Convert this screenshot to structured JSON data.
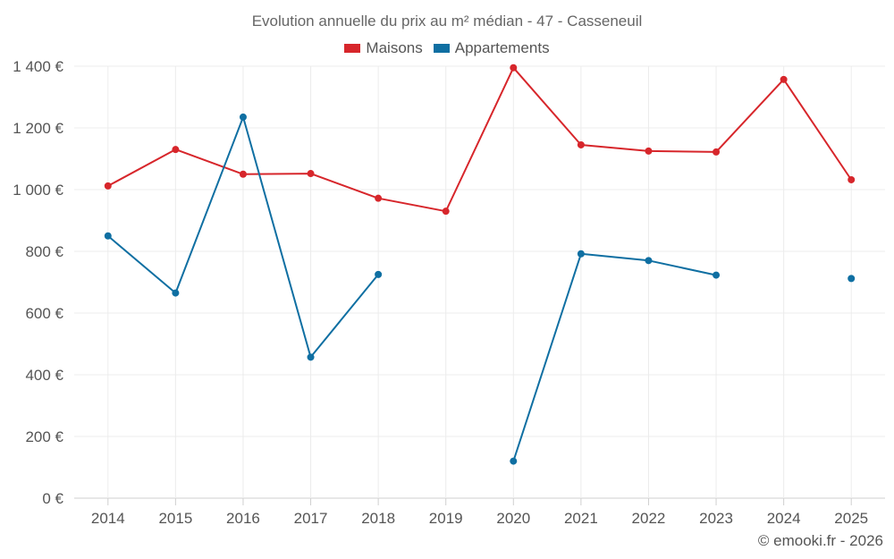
{
  "chart_data": {
    "type": "line",
    "title": "Evolution annuelle du prix au m² médian - 47 - Casseneuil",
    "xlabel": "",
    "ylabel": "",
    "ylim": [
      0,
      1400
    ],
    "yticks": [
      0,
      200,
      400,
      600,
      800,
      1000,
      1200,
      1400
    ],
    "ytick_labels": [
      "0 €",
      "200 €",
      "400 €",
      "600 €",
      "800 €",
      "1 000 €",
      "1 200 €",
      "1 400 €"
    ],
    "categories": [
      "2014",
      "2015",
      "2016",
      "2017",
      "2018",
      "2019",
      "2020",
      "2021",
      "2022",
      "2023",
      "2024",
      "2025"
    ],
    "grid": true,
    "legend_position": "top-center",
    "series": [
      {
        "name": "Maisons",
        "color": "#d7262b",
        "values": [
          1012,
          1130,
          1050,
          1052,
          972,
          930,
          1395,
          1145,
          1125,
          1122,
          1357,
          1032
        ]
      },
      {
        "name": "Appartements",
        "color": "#0f6fa2",
        "values": [
          850,
          665,
          1235,
          457,
          725,
          null,
          120,
          792,
          770,
          723,
          null,
          712
        ]
      }
    ]
  },
  "credit": "© emooki.fr - 2026"
}
